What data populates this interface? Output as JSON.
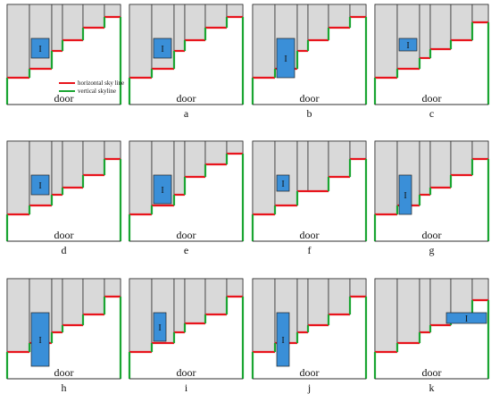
{
  "figure": {
    "door_label": "door",
    "item_label": "I",
    "legend": {
      "horizontal": "horizontal sky line",
      "vertical": "vertical skyline"
    },
    "colors": {
      "horizontal_skyline": "#e8141c",
      "vertical_skyline": "#1aa532",
      "item_fill": "#3a8fd8",
      "column_fill": "#d9d9d9",
      "outline": "#222222"
    },
    "panels": [
      {
        "label": ""
      },
      {
        "label": "a"
      },
      {
        "label": "b"
      },
      {
        "label": "c"
      },
      {
        "label": "d"
      },
      {
        "label": "e"
      },
      {
        "label": "f"
      },
      {
        "label": "g"
      },
      {
        "label": "h"
      },
      {
        "label": "i"
      },
      {
        "label": "j"
      },
      {
        "label": "k"
      }
    ]
  }
}
